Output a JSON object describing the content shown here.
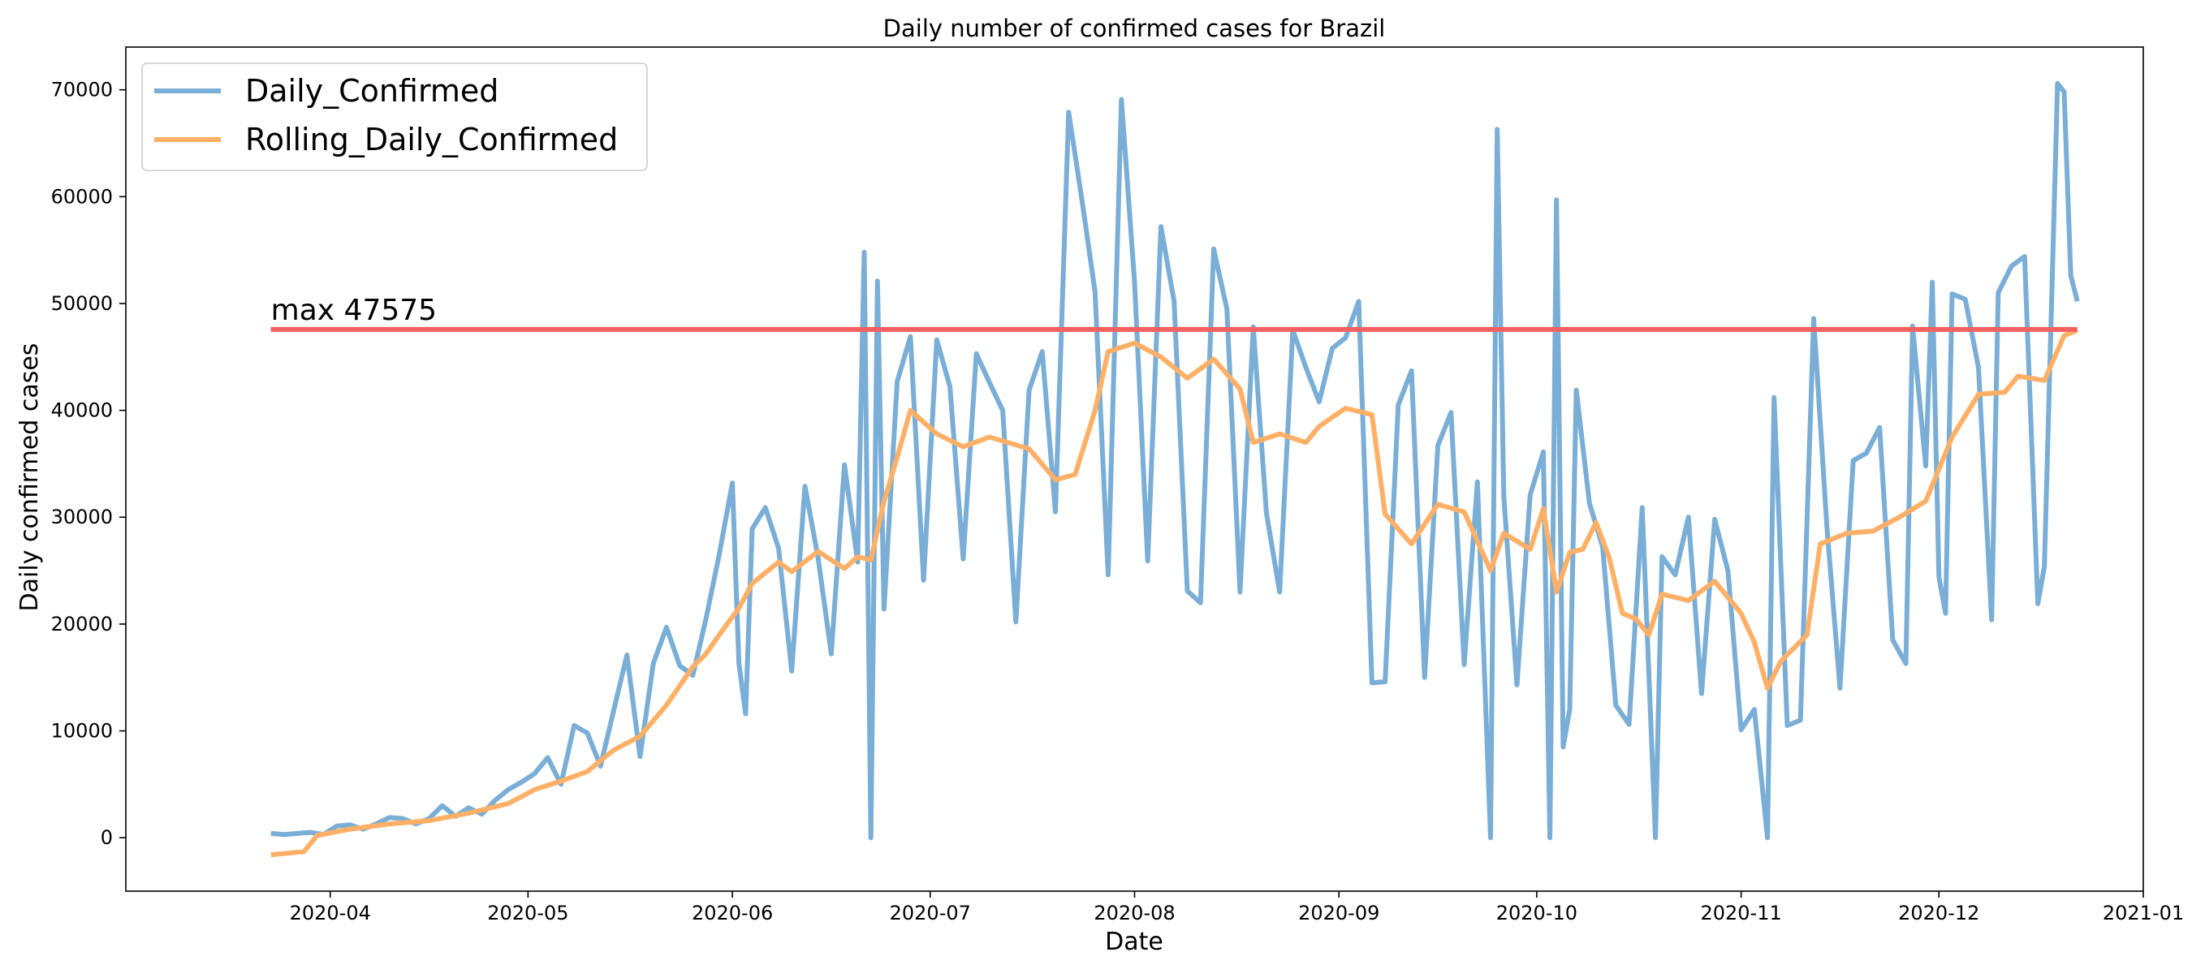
{
  "chart_data": {
    "type": "line",
    "title": "Daily number of confirmed cases for Brazil",
    "xlabel": "Date",
    "ylabel": "Daily confirmed cases",
    "xlim": [
      "2020-03-01",
      "2021-01-01"
    ],
    "ylim": [
      -5000,
      74000
    ],
    "x_ticks": [
      "2020-04",
      "2020-05",
      "2020-06",
      "2020-07",
      "2020-08",
      "2020-09",
      "2020-10",
      "2020-11",
      "2020-12",
      "2021-01"
    ],
    "y_ticks": [
      0,
      10000,
      20000,
      30000,
      40000,
      50000,
      60000,
      70000
    ],
    "grid": false,
    "legend_position": "top-left",
    "series": [
      {
        "name": "Daily_Confirmed",
        "color": "#7aaed6",
        "points": [
          [
            "2020-03-23",
            400
          ],
          [
            "2020-03-25",
            300
          ],
          [
            "2020-03-27",
            400
          ],
          [
            "2020-03-29",
            500
          ],
          [
            "2020-03-31",
            300
          ],
          [
            "2020-04-02",
            1100
          ],
          [
            "2020-04-04",
            1200
          ],
          [
            "2020-04-06",
            800
          ],
          [
            "2020-04-08",
            1300
          ],
          [
            "2020-04-10",
            1900
          ],
          [
            "2020-04-12",
            1800
          ],
          [
            "2020-04-14",
            1300
          ],
          [
            "2020-04-16",
            1800
          ],
          [
            "2020-04-18",
            3000
          ],
          [
            "2020-04-20",
            2000
          ],
          [
            "2020-04-22",
            2800
          ],
          [
            "2020-04-24",
            2200
          ],
          [
            "2020-04-26",
            3500
          ],
          [
            "2020-04-28",
            4500
          ],
          [
            "2020-04-30",
            5200
          ],
          [
            "2020-05-02",
            6000
          ],
          [
            "2020-05-04",
            7500
          ],
          [
            "2020-05-06",
            5000
          ],
          [
            "2020-05-08",
            10500
          ],
          [
            "2020-05-10",
            9800
          ],
          [
            "2020-05-12",
            6700
          ],
          [
            "2020-05-14",
            11900
          ],
          [
            "2020-05-16",
            17100
          ],
          [
            "2020-05-18",
            7600
          ],
          [
            "2020-05-20",
            16300
          ],
          [
            "2020-05-22",
            19700
          ],
          [
            "2020-05-24",
            16100
          ],
          [
            "2020-05-26",
            15200
          ],
          [
            "2020-05-28",
            20500
          ],
          [
            "2020-05-30",
            26500
          ],
          [
            "2020-06-01",
            33200
          ],
          [
            "2020-06-02",
            16300
          ],
          [
            "2020-06-03",
            11600
          ],
          [
            "2020-06-04",
            28900
          ],
          [
            "2020-06-06",
            30900
          ],
          [
            "2020-06-08",
            27100
          ],
          [
            "2020-06-10",
            15600
          ],
          [
            "2020-06-12",
            32900
          ],
          [
            "2020-06-14",
            26200
          ],
          [
            "2020-06-16",
            17200
          ],
          [
            "2020-06-18",
            34900
          ],
          [
            "2020-06-20",
            25800
          ],
          [
            "2020-06-21",
            54800
          ],
          [
            "2020-06-22",
            0
          ],
          [
            "2020-06-23",
            52100
          ],
          [
            "2020-06-24",
            21400
          ],
          [
            "2020-06-26",
            42700
          ],
          [
            "2020-06-28",
            46900
          ],
          [
            "2020-06-30",
            24100
          ],
          [
            "2020-07-02",
            46600
          ],
          [
            "2020-07-04",
            42200
          ],
          [
            "2020-07-06",
            26100
          ],
          [
            "2020-07-08",
            45300
          ],
          [
            "2020-07-10",
            42600
          ],
          [
            "2020-07-12",
            40000
          ],
          [
            "2020-07-14",
            20200
          ],
          [
            "2020-07-16",
            41900
          ],
          [
            "2020-07-18",
            45500
          ],
          [
            "2020-07-20",
            30500
          ],
          [
            "2020-07-22",
            67900
          ],
          [
            "2020-07-24",
            59800
          ],
          [
            "2020-07-26",
            51100
          ],
          [
            "2020-07-28",
            24600
          ],
          [
            "2020-07-30",
            69100
          ],
          [
            "2020-08-01",
            52000
          ],
          [
            "2020-08-03",
            25900
          ],
          [
            "2020-08-05",
            57200
          ],
          [
            "2020-08-07",
            50200
          ],
          [
            "2020-08-09",
            23100
          ],
          [
            "2020-08-11",
            22000
          ],
          [
            "2020-08-13",
            55100
          ],
          [
            "2020-08-15",
            49500
          ],
          [
            "2020-08-17",
            23000
          ],
          [
            "2020-08-19",
            47800
          ],
          [
            "2020-08-21",
            30400
          ],
          [
            "2020-08-23",
            23000
          ],
          [
            "2020-08-25",
            47500
          ],
          [
            "2020-08-27",
            44000
          ],
          [
            "2020-08-29",
            40800
          ],
          [
            "2020-08-31",
            45800
          ],
          [
            "2020-09-02",
            46800
          ],
          [
            "2020-09-04",
            50200
          ],
          [
            "2020-09-06",
            14500
          ],
          [
            "2020-09-08",
            14600
          ],
          [
            "2020-09-10",
            40500
          ],
          [
            "2020-09-12",
            43700
          ],
          [
            "2020-09-14",
            15000
          ],
          [
            "2020-09-16",
            36700
          ],
          [
            "2020-09-18",
            39800
          ],
          [
            "2020-09-20",
            16200
          ],
          [
            "2020-09-22",
            33300
          ],
          [
            "2020-09-24",
            0
          ],
          [
            "2020-09-25",
            66300
          ],
          [
            "2020-09-26",
            32000
          ],
          [
            "2020-09-28",
            14300
          ],
          [
            "2020-09-30",
            32100
          ],
          [
            "2020-10-02",
            36100
          ],
          [
            "2020-10-03",
            0
          ],
          [
            "2020-10-04",
            59700
          ],
          [
            "2020-10-05",
            8500
          ],
          [
            "2020-10-06",
            12000
          ],
          [
            "2020-10-07",
            41900
          ],
          [
            "2020-10-09",
            31300
          ],
          [
            "2020-10-11",
            27200
          ],
          [
            "2020-10-13",
            12400
          ],
          [
            "2020-10-15",
            10600
          ],
          [
            "2020-10-17",
            30900
          ],
          [
            "2020-10-19",
            0
          ],
          [
            "2020-10-20",
            26300
          ],
          [
            "2020-10-22",
            24600
          ],
          [
            "2020-10-24",
            30000
          ],
          [
            "2020-10-26",
            13500
          ],
          [
            "2020-10-28",
            29800
          ],
          [
            "2020-10-30",
            25000
          ],
          [
            "2020-11-01",
            10100
          ],
          [
            "2020-11-03",
            12000
          ],
          [
            "2020-11-05",
            0
          ],
          [
            "2020-11-06",
            41200
          ],
          [
            "2020-11-08",
            10500
          ],
          [
            "2020-11-10",
            11000
          ],
          [
            "2020-11-12",
            48600
          ],
          [
            "2020-11-14",
            29200
          ],
          [
            "2020-11-16",
            14000
          ],
          [
            "2020-11-18",
            35300
          ],
          [
            "2020-11-20",
            36000
          ],
          [
            "2020-11-22",
            38400
          ],
          [
            "2020-11-24",
            18500
          ],
          [
            "2020-11-26",
            16300
          ],
          [
            "2020-11-27",
            47900
          ],
          [
            "2020-11-29",
            34800
          ],
          [
            "2020-11-30",
            52000
          ],
          [
            "2020-12-01",
            24400
          ],
          [
            "2020-12-02",
            21000
          ],
          [
            "2020-12-03",
            50900
          ],
          [
            "2020-12-05",
            50400
          ],
          [
            "2020-12-07",
            44000
          ],
          [
            "2020-12-09",
            20400
          ],
          [
            "2020-12-10",
            51000
          ],
          [
            "2020-12-12",
            53500
          ],
          [
            "2020-12-14",
            54400
          ],
          [
            "2020-12-16",
            21900
          ],
          [
            "2020-12-17",
            25400
          ],
          [
            "2020-12-19",
            70600
          ],
          [
            "2020-12-20",
            69800
          ],
          [
            "2020-12-21",
            52600
          ],
          [
            "2020-12-22",
            50200
          ]
        ]
      },
      {
        "name": "Rolling_Daily_Confirmed",
        "color": "#ffb066",
        "points": [
          [
            "2020-03-23",
            -1600
          ],
          [
            "2020-03-28",
            -1300
          ],
          [
            "2020-03-30",
            200
          ],
          [
            "2020-04-04",
            800
          ],
          [
            "2020-04-10",
            1300
          ],
          [
            "2020-04-16",
            1600
          ],
          [
            "2020-04-22",
            2300
          ],
          [
            "2020-04-28",
            3200
          ],
          [
            "2020-05-02",
            4500
          ],
          [
            "2020-05-06",
            5300
          ],
          [
            "2020-05-10",
            6200
          ],
          [
            "2020-05-14",
            8200
          ],
          [
            "2020-05-18",
            9500
          ],
          [
            "2020-05-22",
            12400
          ],
          [
            "2020-05-26",
            16000
          ],
          [
            "2020-05-28",
            17200
          ],
          [
            "2020-05-30",
            19000
          ],
          [
            "2020-06-02",
            21500
          ],
          [
            "2020-06-04",
            23800
          ],
          [
            "2020-06-08",
            25800
          ],
          [
            "2020-06-10",
            24900
          ],
          [
            "2020-06-14",
            26800
          ],
          [
            "2020-06-18",
            25200
          ],
          [
            "2020-06-20",
            26300
          ],
          [
            "2020-06-22",
            26000
          ],
          [
            "2020-06-24",
            31500
          ],
          [
            "2020-06-26",
            35600
          ],
          [
            "2020-06-28",
            40000
          ],
          [
            "2020-07-02",
            37800
          ],
          [
            "2020-07-06",
            36600
          ],
          [
            "2020-07-10",
            37500
          ],
          [
            "2020-07-16",
            36400
          ],
          [
            "2020-07-20",
            33500
          ],
          [
            "2020-07-23",
            34000
          ],
          [
            "2020-07-26",
            40000
          ],
          [
            "2020-07-28",
            45500
          ],
          [
            "2020-08-01",
            46300
          ],
          [
            "2020-08-05",
            45000
          ],
          [
            "2020-08-09",
            43000
          ],
          [
            "2020-08-13",
            44800
          ],
          [
            "2020-08-17",
            42000
          ],
          [
            "2020-08-19",
            37000
          ],
          [
            "2020-08-23",
            37800
          ],
          [
            "2020-08-27",
            37000
          ],
          [
            "2020-08-29",
            38500
          ],
          [
            "2020-09-02",
            40200
          ],
          [
            "2020-09-06",
            39600
          ],
          [
            "2020-09-08",
            30300
          ],
          [
            "2020-09-12",
            27500
          ],
          [
            "2020-09-16",
            31200
          ],
          [
            "2020-09-20",
            30500
          ],
          [
            "2020-09-24",
            25000
          ],
          [
            "2020-09-26",
            28500
          ],
          [
            "2020-09-30",
            27000
          ],
          [
            "2020-10-02",
            30800
          ],
          [
            "2020-10-04",
            23000
          ],
          [
            "2020-10-06",
            26700
          ],
          [
            "2020-10-08",
            27000
          ],
          [
            "2020-10-10",
            29500
          ],
          [
            "2020-10-12",
            26200
          ],
          [
            "2020-10-14",
            21000
          ],
          [
            "2020-10-16",
            20500
          ],
          [
            "2020-10-18",
            19000
          ],
          [
            "2020-10-20",
            22800
          ],
          [
            "2020-10-24",
            22200
          ],
          [
            "2020-10-28",
            24000
          ],
          [
            "2020-11-01",
            21000
          ],
          [
            "2020-11-03",
            18300
          ],
          [
            "2020-11-05",
            14000
          ],
          [
            "2020-11-07",
            16500
          ],
          [
            "2020-11-11",
            19000
          ],
          [
            "2020-11-13",
            27500
          ],
          [
            "2020-11-17",
            28500
          ],
          [
            "2020-11-21",
            28700
          ],
          [
            "2020-11-25",
            30000
          ],
          [
            "2020-11-29",
            31500
          ],
          [
            "2020-12-03",
            37500
          ],
          [
            "2020-12-07",
            41500
          ],
          [
            "2020-12-11",
            41700
          ],
          [
            "2020-12-13",
            43200
          ],
          [
            "2020-12-17",
            42800
          ],
          [
            "2020-12-20",
            47000
          ],
          [
            "2020-12-22",
            47500
          ]
        ]
      }
    ],
    "reference_line": {
      "value": 47575,
      "label": "max 47575",
      "color": "#f26060",
      "x_start": "2020-03-23",
      "x_end": "2020-12-22"
    }
  }
}
